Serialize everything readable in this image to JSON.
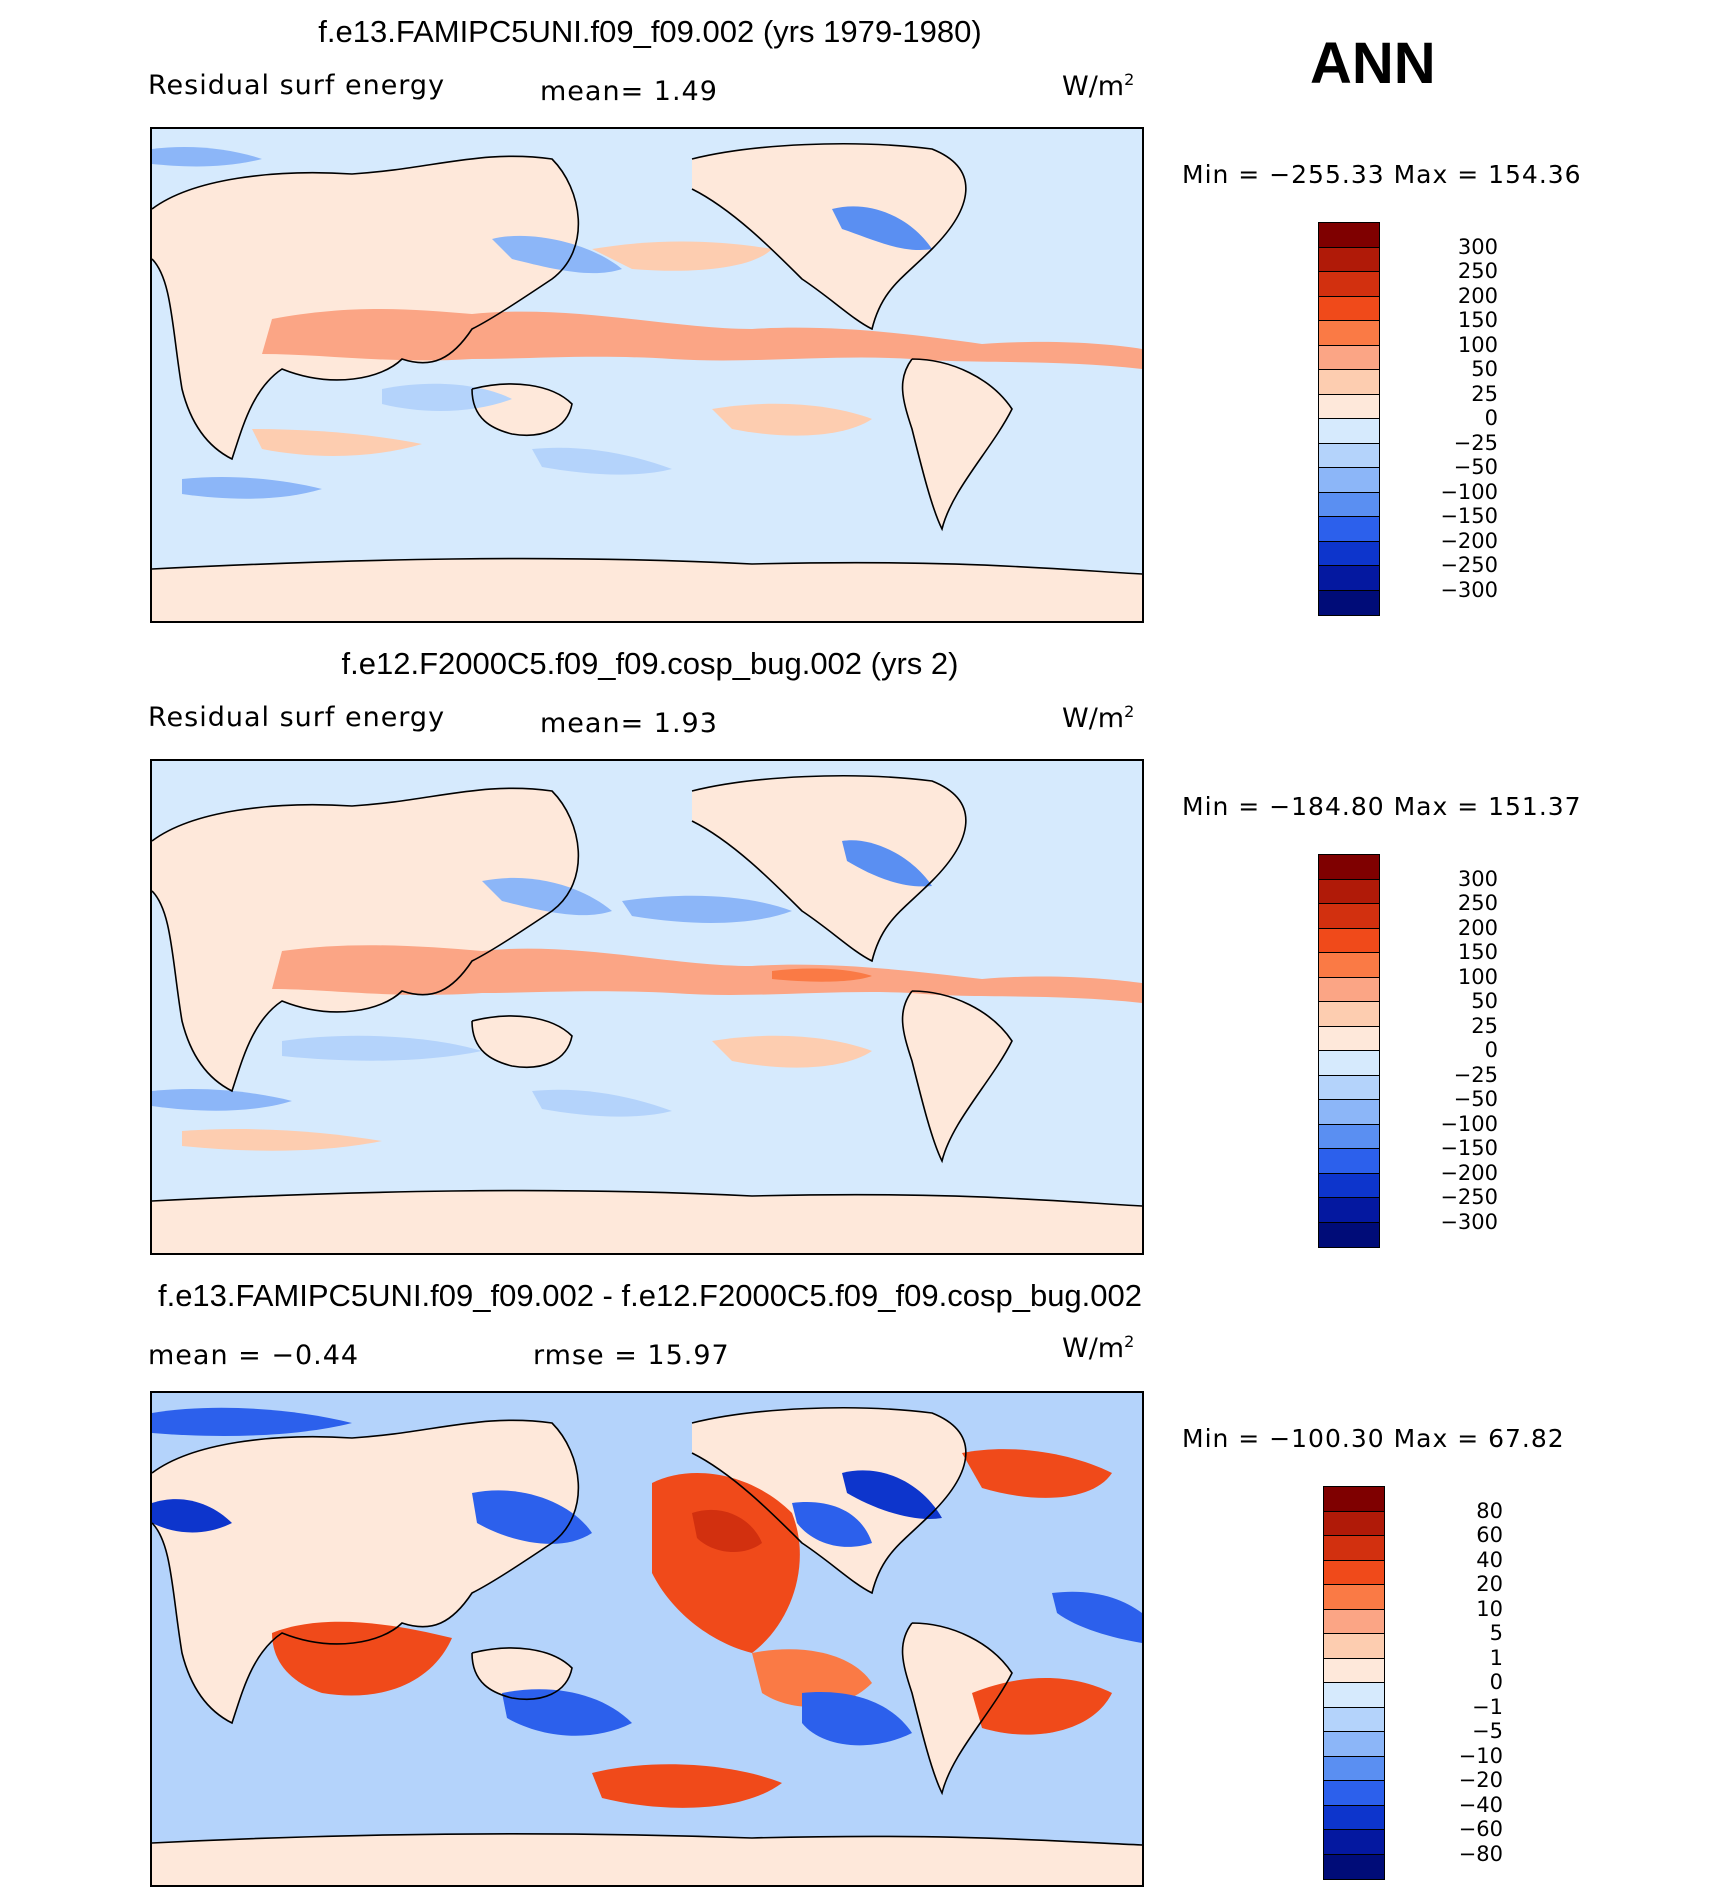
{
  "season": "ANN",
  "panels": [
    {
      "title": "f.e13.FAMIPC5UNI.f09_f09.002 (yrs 1979-1980)",
      "left_label": "Residual surf energy",
      "mid_label": "mean=    1.49",
      "units": "W/m",
      "units_sup": "2",
      "minmax": "Min = −255.33 Max = 154.36",
      "colorbar": {
        "levels": [
          "300",
          "250",
          "200",
          "150",
          "100",
          "50",
          "25",
          "0",
          "−25",
          "−50",
          "−100",
          "−150",
          "−200",
          "−250",
          "−300"
        ],
        "colors": [
          "#7f0000",
          "#b01a08",
          "#d2300f",
          "#f04a1a",
          "#fa7a45",
          "#fba585",
          "#fdcdb0",
          "#fee8da",
          "#d6eafd",
          "#b4d3fb",
          "#8cb6f8",
          "#5a8ff2",
          "#2c60ec",
          "#0d35cc",
          "#0418a0",
          "#000c78"
        ]
      }
    },
    {
      "title": "f.e12.F2000C5.f09_f09.cosp_bug.002 (yrs 2)",
      "left_label": "Residual surf energy",
      "mid_label": "mean=    1.93",
      "units": "W/m",
      "units_sup": "2",
      "minmax": "Min = −184.80 Max = 151.37",
      "colorbar": {
        "levels": [
          "300",
          "250",
          "200",
          "150",
          "100",
          "50",
          "25",
          "0",
          "−25",
          "−50",
          "−100",
          "−150",
          "−200",
          "−250",
          "−300"
        ],
        "colors": [
          "#7f0000",
          "#b01a08",
          "#d2300f",
          "#f04a1a",
          "#fa7a45",
          "#fba585",
          "#fdcdb0",
          "#fee8da",
          "#d6eafd",
          "#b4d3fb",
          "#8cb6f8",
          "#5a8ff2",
          "#2c60ec",
          "#0d35cc",
          "#0418a0",
          "#000c78"
        ]
      }
    },
    {
      "title": "f.e13.FAMIPC5UNI.f09_f09.002 - f.e12.F2000C5.f09_f09.cosp_bug.002",
      "left_label": "mean =   −0.44",
      "mid_label": "rmse =   15.97",
      "units": "W/m",
      "units_sup": "2",
      "minmax": "Min = −100.30 Max =  67.82",
      "colorbar": {
        "levels": [
          "80",
          "60",
          "40",
          "20",
          "10",
          "5",
          "1",
          "0",
          "−1",
          "−5",
          "−10",
          "−20",
          "−40",
          "−60",
          "−80"
        ],
        "colors": [
          "#7f0000",
          "#b01a08",
          "#d2300f",
          "#f04a1a",
          "#fa7a45",
          "#fba585",
          "#fdcdb0",
          "#fee8da",
          "#d6eafd",
          "#b4d3fb",
          "#8cb6f8",
          "#5a8ff2",
          "#2c60ec",
          "#0d35cc",
          "#0418a0",
          "#000c78"
        ]
      }
    }
  ]
}
